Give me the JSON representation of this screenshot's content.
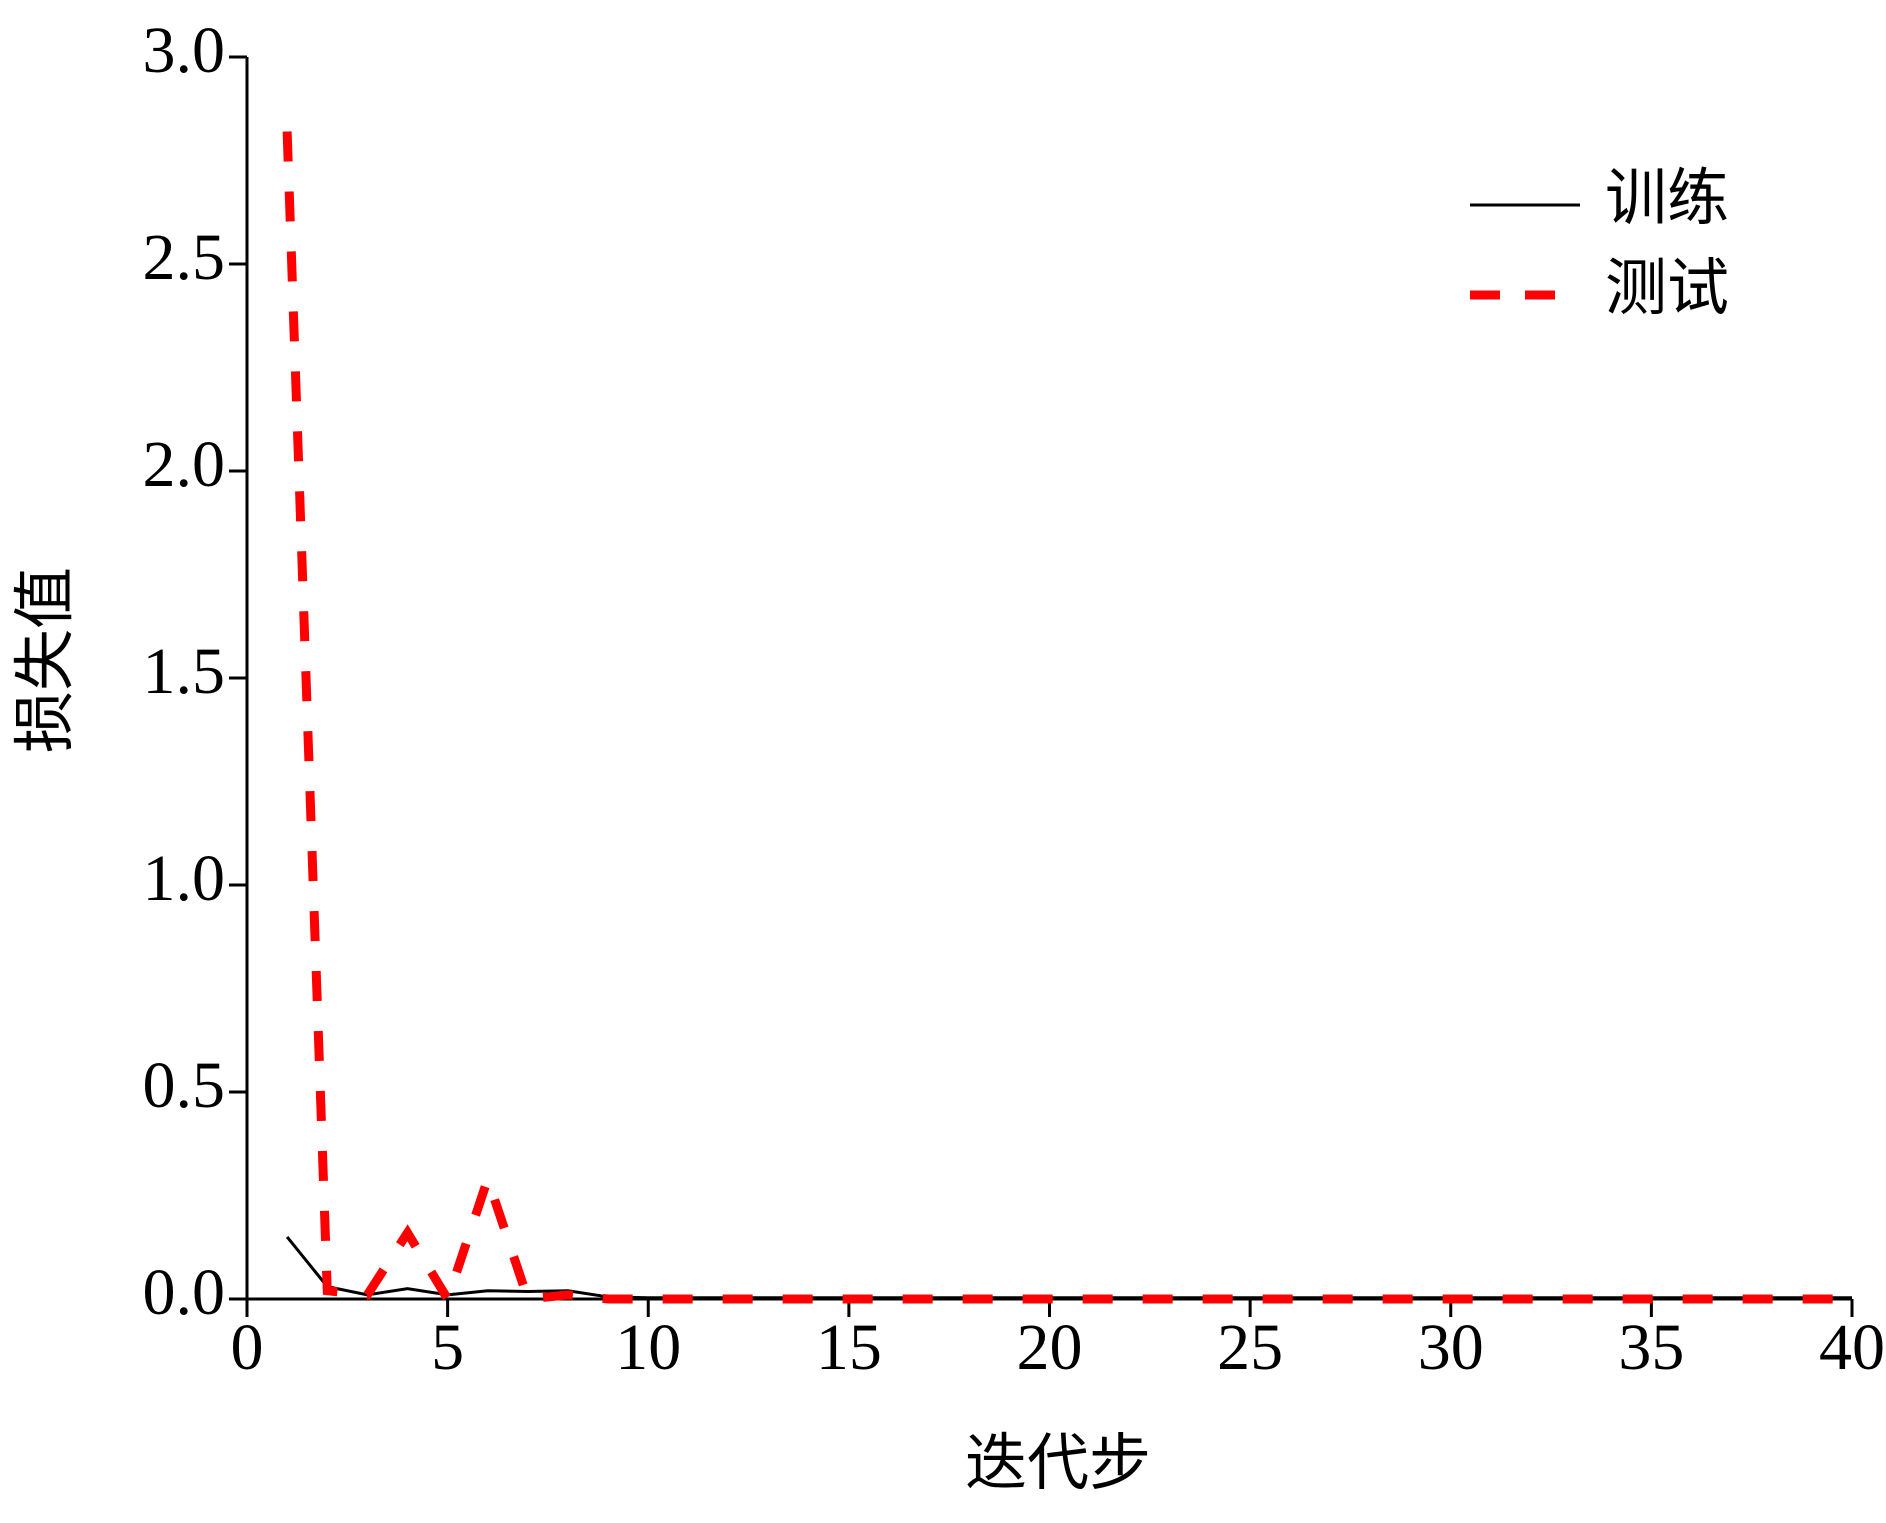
{
  "chart_data": {
    "type": "line",
    "xlabel": "迭代步",
    "ylabel": "损失值",
    "x": [
      1,
      2,
      3,
      4,
      5,
      6,
      7,
      8,
      9,
      10,
      11,
      12,
      13,
      14,
      15,
      16,
      17,
      18,
      19,
      20,
      21,
      22,
      23,
      24,
      25,
      26,
      27,
      28,
      29,
      30,
      31,
      32,
      33,
      34,
      35,
      36,
      37,
      38,
      39,
      40
    ],
    "series": [
      {
        "name": "训练",
        "color": "#000000",
        "dash": "solid",
        "values": [
          0.15,
          0.03,
          0.01,
          0.025,
          0.01,
          0.02,
          0.018,
          0.02,
          0.005,
          0.003,
          0.003,
          0.003,
          0.003,
          0.003,
          0.003,
          0.003,
          0.003,
          0.003,
          0.003,
          0.003,
          0.003,
          0.003,
          0.003,
          0.003,
          0.003,
          0.003,
          0.003,
          0.003,
          0.003,
          0.003,
          0.003,
          0.003,
          0.003,
          0.003,
          0.003,
          0.003,
          0.003,
          0.003,
          0.003,
          0.003
        ]
      },
      {
        "name": "测试",
        "color": "#ff0000",
        "dash": "dashed",
        "values": [
          2.82,
          0.02,
          0.01,
          0.16,
          0.0,
          0.29,
          0.0,
          0.01,
          0.0,
          0.0,
          0.0,
          0.0,
          0.0,
          0.0,
          0.0,
          0.0,
          0.0,
          0.0,
          0.0,
          0.0,
          0.0,
          0.0,
          0.0,
          0.0,
          0.0,
          0.0,
          0.0,
          0.0,
          0.0,
          0.0,
          0.0,
          0.0,
          0.0,
          0.0,
          0.0,
          0.0,
          0.0,
          0.0,
          0.0,
          0.0
        ]
      }
    ],
    "xlim": [
      0,
      40
    ],
    "xticks": [
      0,
      5,
      10,
      15,
      20,
      25,
      30,
      35,
      40
    ],
    "ylim": [
      0,
      3
    ],
    "yticks": [
      {
        "value": 0,
        "label": "0.0"
      },
      0.5,
      {
        "value": 1,
        "label": "1.0"
      },
      1.5,
      {
        "value": 2,
        "label": "2.0"
      },
      2.5,
      {
        "value": 3,
        "label": "3.0"
      }
    ],
    "legend": "upper right"
  }
}
